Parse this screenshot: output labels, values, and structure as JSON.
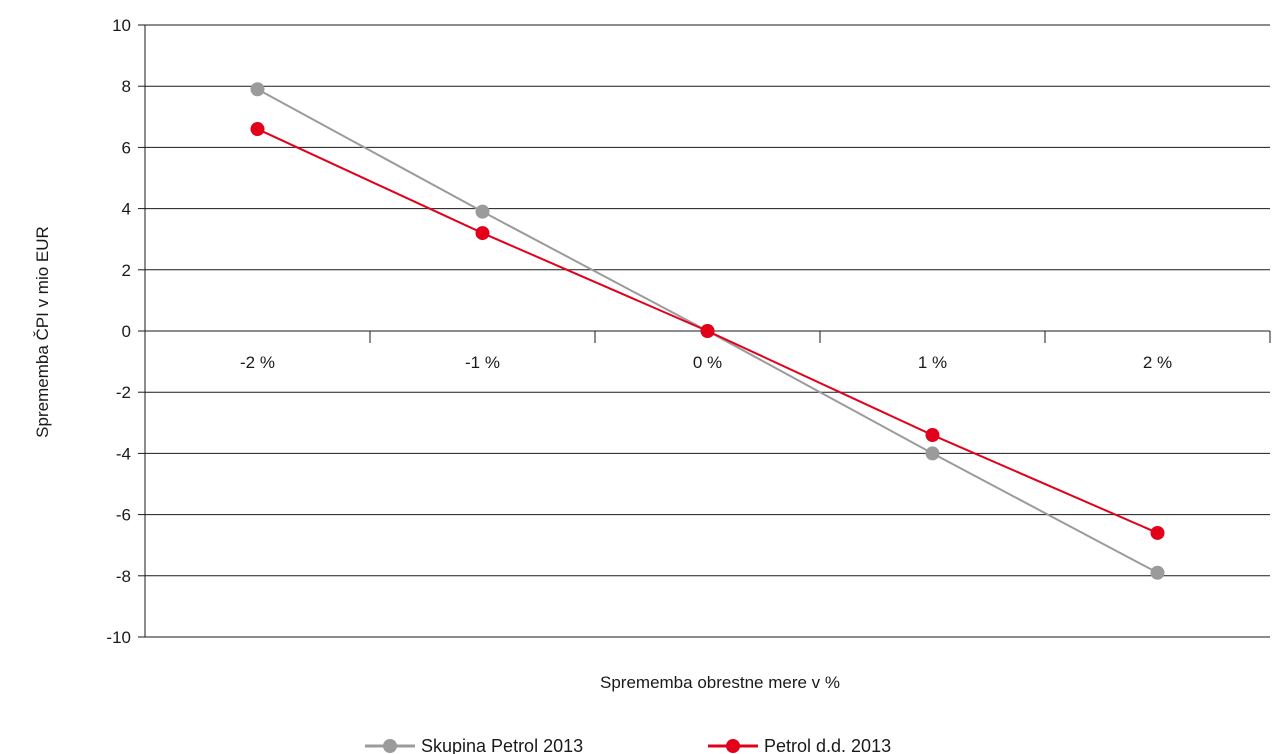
{
  "chart_data": {
    "type": "line",
    "title": "",
    "xlabel": "Sprememba obrestne mere v %",
    "ylabel": "Sprememba ČPI v mio EUR",
    "categories": [
      "-2 %",
      "-1 %",
      "0 %",
      "1 %",
      "2 %"
    ],
    "ylim": [
      -10,
      10
    ],
    "yticks": [
      10,
      8,
      6,
      4,
      2,
      0,
      -2,
      -4,
      -6,
      -8,
      -10
    ],
    "grid": "horizontal",
    "legend": "bottom",
    "series": [
      {
        "name": "Skupina Petrol 2013",
        "color": "#9b9b9b",
        "values": [
          7.9,
          3.9,
          0,
          -4.0,
          -7.9
        ]
      },
      {
        "name": "Petrol d.d. 2013",
        "color": "#e2001a",
        "values": [
          6.6,
          3.2,
          0,
          -3.4,
          -6.6
        ]
      }
    ]
  }
}
